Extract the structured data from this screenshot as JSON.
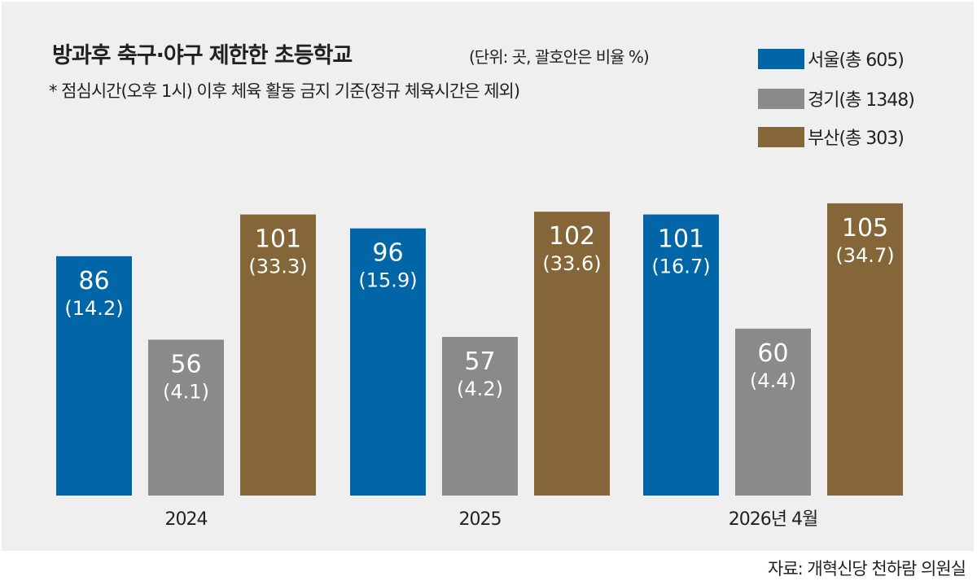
{
  "header": {
    "title": "방과후 축구·야구 제한한 초등학교",
    "unit": "(단위: 곳, 괄호안은 비율 %)",
    "note": "* 점심시간(오후 1시) 이후 체육 활동 금지 기준(정규 체육시간은 제외)"
  },
  "legend": [
    {
      "label": "서울(총 605)",
      "color": "#0066a8"
    },
    {
      "label": "경기(총 1348)",
      "color": "#8a8a8a"
    },
    {
      "label": "부산(총 303)",
      "color": "#856638"
    }
  ],
  "source": "자료: 개혁신당 천하람 의원실",
  "chart_data": {
    "type": "bar",
    "title": "방과후 축구·야구 제한한 초등학교",
    "subtitle": "* 점심시간(오후 1시) 이후 체육 활동 금지 기준(정규 체육시간은 제외)",
    "xlabel": "",
    "ylabel": "",
    "units": "곳 (괄호안은 비율 %)",
    "categories": [
      "2024",
      "2025",
      "2026년 4월"
    ],
    "series": [
      {
        "name": "서울(총 605)",
        "color": "#0066a8",
        "values": [
          86,
          96,
          101
        ],
        "percent": [
          14.2,
          15.9,
          16.7
        ],
        "labels": [
          "86",
          "96",
          "101"
        ],
        "pct_labels": [
          "(14.2)",
          "(15.9)",
          "(16.7)"
        ]
      },
      {
        "name": "경기(총 1348)",
        "color": "#8a8a8a",
        "values": [
          56,
          57,
          60
        ],
        "percent": [
          4.1,
          4.2,
          4.4
        ],
        "labels": [
          "56",
          "57",
          "60"
        ],
        "pct_labels": [
          "(4.1)",
          "(4.2)",
          "(4.4)"
        ]
      },
      {
        "name": "부산(총 303)",
        "color": "#856638",
        "values": [
          101,
          102,
          105
        ],
        "percent": [
          33.3,
          33.6,
          34.7
        ],
        "labels": [
          "101",
          "102",
          "105"
        ],
        "pct_labels": [
          "(33.3)",
          "(33.6)",
          "(34.7)"
        ]
      }
    ],
    "ylim": [
      0,
      120
    ],
    "grid": false,
    "legend_position": "top-right"
  }
}
